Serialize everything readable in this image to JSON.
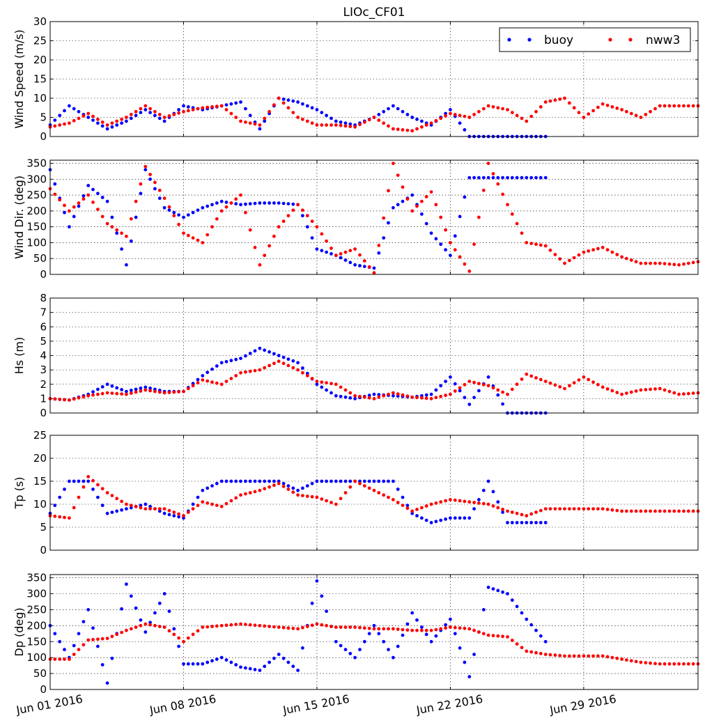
{
  "figure": {
    "title": "LIOc_CF01"
  },
  "colors": {
    "buoy": "#0000ff",
    "nww3": "#ff0000",
    "grid": "#000000"
  },
  "legend": {
    "placement": "top-right",
    "entries": [
      "buoy",
      "nww3"
    ]
  },
  "x_axis": {
    "type": "date",
    "range": [
      "2016-06-01",
      "2016-07-05"
    ],
    "tick_labels": [
      "Jun 01 2016",
      "Jun 08 2016",
      "Jun 15 2016",
      "Jun 22 2016",
      "Jun 29 2016"
    ],
    "tick_values": [
      "2016-06-01",
      "2016-06-08",
      "2016-06-15",
      "2016-06-22",
      "2016-06-29"
    ]
  },
  "chart_data": [
    {
      "type": "scatter",
      "ylabel": "Wind Speed (m/s)",
      "ylim": [
        0,
        30
      ],
      "yticks": [
        "0",
        "5",
        "10",
        "15",
        "20",
        "25",
        "30"
      ],
      "grid": true,
      "series": [
        {
          "name": "buoy",
          "x": [
            "2016-06-01",
            "2016-06-02",
            "2016-06-03",
            "2016-06-04",
            "2016-06-05",
            "2016-06-06",
            "2016-06-07",
            "2016-06-08",
            "2016-06-09",
            "2016-06-10",
            "2016-06-11",
            "2016-06-12",
            "2016-06-13",
            "2016-06-14",
            "2016-06-15",
            "2016-06-16",
            "2016-06-17",
            "2016-06-18",
            "2016-06-19",
            "2016-06-20",
            "2016-06-21",
            "2016-06-22",
            "2016-06-23",
            "2016-06-24",
            "2016-06-25",
            "2016-06-26",
            "2016-06-27"
          ],
          "values": [
            3,
            8,
            5,
            2,
            4,
            7,
            4,
            8,
            7,
            8,
            9,
            2,
            10,
            9,
            7,
            4,
            3,
            5,
            8,
            5,
            3,
            7,
            0,
            0,
            0,
            0,
            0
          ]
        },
        {
          "name": "nww3",
          "x": [
            "2016-06-01",
            "2016-06-02",
            "2016-06-03",
            "2016-06-04",
            "2016-06-05",
            "2016-06-06",
            "2016-06-07",
            "2016-06-08",
            "2016-06-09",
            "2016-06-10",
            "2016-06-11",
            "2016-06-12",
            "2016-06-13",
            "2016-06-14",
            "2016-06-15",
            "2016-06-16",
            "2016-06-17",
            "2016-06-18",
            "2016-06-19",
            "2016-06-20",
            "2016-06-21",
            "2016-06-22",
            "2016-06-23",
            "2016-06-24",
            "2016-06-25",
            "2016-06-26",
            "2016-06-27",
            "2016-06-28",
            "2016-06-29",
            "2016-06-30",
            "2016-07-01",
            "2016-07-02",
            "2016-07-03",
            "2016-07-04",
            "2016-07-05"
          ],
          "values": [
            2.5,
            3.5,
            6,
            3,
            5,
            8,
            5,
            6.5,
            7.5,
            8,
            4,
            3,
            10,
            5,
            3,
            3,
            2.5,
            5,
            2,
            1.5,
            3.5,
            6,
            5,
            8,
            7,
            4,
            9,
            10,
            5,
            8.5,
            7,
            5,
            8,
            8,
            8
          ]
        }
      ]
    },
    {
      "type": "scatter",
      "ylabel": "Wind Dir. (deg)",
      "ylim": [
        0,
        360
      ],
      "yticks": [
        "0",
        "50",
        "100",
        "150",
        "200",
        "250",
        "300",
        "350"
      ],
      "grid": true,
      "series": [
        {
          "name": "buoy",
          "x": [
            "2016-06-01",
            "2016-06-02",
            "2016-06-03",
            "2016-06-04",
            "2016-06-05",
            "2016-06-06",
            "2016-06-07",
            "2016-06-08",
            "2016-06-09",
            "2016-06-10",
            "2016-06-11",
            "2016-06-12",
            "2016-06-13",
            "2016-06-14",
            "2016-06-15",
            "2016-06-16",
            "2016-06-17",
            "2016-06-18",
            "2016-06-19",
            "2016-06-20",
            "2016-06-21",
            "2016-06-22",
            "2016-06-23",
            "2016-06-24",
            "2016-06-25",
            "2016-06-26",
            "2016-06-27"
          ],
          "values": [
            330,
            150,
            280,
            230,
            30,
            330,
            210,
            180,
            210,
            230,
            220,
            225,
            225,
            220,
            80,
            60,
            30,
            20,
            210,
            250,
            130,
            60,
            305,
            305,
            305,
            305,
            305
          ]
        },
        {
          "name": "nww3",
          "x": [
            "2016-06-01",
            "2016-06-02",
            "2016-06-03",
            "2016-06-04",
            "2016-06-05",
            "2016-06-06",
            "2016-06-07",
            "2016-06-08",
            "2016-06-09",
            "2016-06-10",
            "2016-06-11",
            "2016-06-12",
            "2016-06-13",
            "2016-06-14",
            "2016-06-15",
            "2016-06-16",
            "2016-06-17",
            "2016-06-18",
            "2016-06-19",
            "2016-06-20",
            "2016-06-21",
            "2016-06-22",
            "2016-06-23",
            "2016-06-24",
            "2016-06-25",
            "2016-06-26",
            "2016-06-27",
            "2016-06-28",
            "2016-06-29",
            "2016-06-30",
            "2016-07-01",
            "2016-07-02",
            "2016-07-03",
            "2016-07-04",
            "2016-07-05"
          ],
          "values": [
            270,
            200,
            250,
            160,
            120,
            340,
            240,
            130,
            100,
            200,
            250,
            30,
            150,
            220,
            150,
            60,
            80,
            5,
            350,
            200,
            260,
            100,
            10,
            350,
            220,
            100,
            90,
            35,
            70,
            85,
            55,
            35,
            35,
            30,
            40
          ]
        }
      ]
    },
    {
      "type": "scatter",
      "ylabel": "Hs (m)",
      "ylim": [
        0,
        8
      ],
      "yticks": [
        "0",
        "1",
        "2",
        "3",
        "4",
        "5",
        "6",
        "7",
        "8"
      ],
      "grid": true,
      "series": [
        {
          "name": "buoy",
          "x": [
            "2016-06-01",
            "2016-06-02",
            "2016-06-03",
            "2016-06-04",
            "2016-06-05",
            "2016-06-06",
            "2016-06-07",
            "2016-06-08",
            "2016-06-09",
            "2016-06-10",
            "2016-06-11",
            "2016-06-12",
            "2016-06-13",
            "2016-06-14",
            "2016-06-15",
            "2016-06-16",
            "2016-06-17",
            "2016-06-18",
            "2016-06-19",
            "2016-06-20",
            "2016-06-21",
            "2016-06-22",
            "2016-06-23",
            "2016-06-24",
            "2016-06-25",
            "2016-06-26",
            "2016-06-27"
          ],
          "values": [
            1,
            0.9,
            1.3,
            2,
            1.5,
            1.8,
            1.5,
            1.5,
            2.6,
            3.5,
            3.8,
            4.5,
            4,
            3.5,
            2,
            1.2,
            1,
            1.3,
            1.2,
            1.1,
            1.3,
            2.5,
            0.6,
            2.5,
            0,
            0,
            0
          ]
        },
        {
          "name": "nww3",
          "x": [
            "2016-06-01",
            "2016-06-02",
            "2016-06-03",
            "2016-06-04",
            "2016-06-05",
            "2016-06-06",
            "2016-06-07",
            "2016-06-08",
            "2016-06-09",
            "2016-06-10",
            "2016-06-11",
            "2016-06-12",
            "2016-06-13",
            "2016-06-14",
            "2016-06-15",
            "2016-06-16",
            "2016-06-17",
            "2016-06-18",
            "2016-06-19",
            "2016-06-20",
            "2016-06-21",
            "2016-06-22",
            "2016-06-23",
            "2016-06-24",
            "2016-06-25",
            "2016-06-26",
            "2016-06-27",
            "2016-06-28",
            "2016-06-29",
            "2016-06-30",
            "2016-07-01",
            "2016-07-02",
            "2016-07-03",
            "2016-07-04",
            "2016-07-05"
          ],
          "values": [
            1,
            0.9,
            1.2,
            1.4,
            1.3,
            1.6,
            1.4,
            1.5,
            2.3,
            2,
            2.8,
            3,
            3.6,
            3,
            2.2,
            2,
            1.2,
            1,
            1.4,
            1.1,
            1,
            1.3,
            2.2,
            1.9,
            1.3,
            2.7,
            2.2,
            1.7,
            2.5,
            1.8,
            1.3,
            1.6,
            1.7,
            1.3,
            1.4
          ]
        }
      ]
    },
    {
      "type": "scatter",
      "ylabel": "Tp (s)",
      "ylim": [
        0,
        25
      ],
      "yticks": [
        "0",
        "5",
        "10",
        "15",
        "20",
        "25"
      ],
      "grid": true,
      "series": [
        {
          "name": "buoy",
          "x": [
            "2016-06-01",
            "2016-06-02",
            "2016-06-03",
            "2016-06-04",
            "2016-06-05",
            "2016-06-06",
            "2016-06-07",
            "2016-06-08",
            "2016-06-09",
            "2016-06-10",
            "2016-06-11",
            "2016-06-12",
            "2016-06-13",
            "2016-06-14",
            "2016-06-15",
            "2016-06-16",
            "2016-06-17",
            "2016-06-18",
            "2016-06-19",
            "2016-06-20",
            "2016-06-21",
            "2016-06-22",
            "2016-06-23",
            "2016-06-24",
            "2016-06-25",
            "2016-06-26",
            "2016-06-27"
          ],
          "values": [
            8,
            15,
            15,
            8,
            9,
            10,
            8,
            7,
            13,
            15,
            15,
            15,
            15,
            13,
            15,
            15,
            15,
            15,
            15,
            8,
            6,
            7,
            7,
            15,
            6,
            6,
            6
          ]
        },
        {
          "name": "nww3",
          "x": [
            "2016-06-01",
            "2016-06-02",
            "2016-06-03",
            "2016-06-04",
            "2016-06-05",
            "2016-06-06",
            "2016-06-07",
            "2016-06-08",
            "2016-06-09",
            "2016-06-10",
            "2016-06-11",
            "2016-06-12",
            "2016-06-13",
            "2016-06-14",
            "2016-06-15",
            "2016-06-16",
            "2016-06-17",
            "2016-06-18",
            "2016-06-19",
            "2016-06-20",
            "2016-06-21",
            "2016-06-22",
            "2016-06-23",
            "2016-06-24",
            "2016-06-25",
            "2016-06-26",
            "2016-06-27",
            "2016-06-28",
            "2016-06-29",
            "2016-06-30",
            "2016-07-01",
            "2016-07-02",
            "2016-07-03",
            "2016-07-04",
            "2016-07-05"
          ],
          "values": [
            7.5,
            7,
            16,
            12.5,
            10,
            9,
            9,
            7.5,
            10.5,
            9.5,
            12,
            13,
            14.5,
            12,
            11.5,
            10,
            15,
            13,
            11,
            8.5,
            10,
            11,
            10.5,
            10,
            8.5,
            7.5,
            9,
            9,
            9,
            9,
            8.5,
            8.5,
            8.5,
            8.5,
            8.5
          ]
        }
      ]
    },
    {
      "type": "scatter",
      "ylabel": "Dp (deg)",
      "ylim": [
        0,
        360
      ],
      "yticks": [
        "0",
        "50",
        "100",
        "150",
        "200",
        "250",
        "300",
        "350"
      ],
      "grid": true,
      "series": [
        {
          "name": "buoy",
          "x": [
            "2016-06-01",
            "2016-06-02",
            "2016-06-03",
            "2016-06-04",
            "2016-06-05",
            "2016-06-06",
            "2016-06-07",
            "2016-06-08",
            "2016-06-09",
            "2016-06-10",
            "2016-06-11",
            "2016-06-12",
            "2016-06-13",
            "2016-06-14",
            "2016-06-15",
            "2016-06-16",
            "2016-06-17",
            "2016-06-18",
            "2016-06-19",
            "2016-06-20",
            "2016-06-21",
            "2016-06-22",
            "2016-06-23",
            "2016-06-24",
            "2016-06-25",
            "2016-06-26",
            "2016-06-27"
          ],
          "values": [
            200,
            100,
            250,
            20,
            330,
            180,
            300,
            80,
            80,
            100,
            70,
            60,
            110,
            60,
            340,
            150,
            100,
            200,
            100,
            240,
            150,
            220,
            40,
            320,
            300,
            220,
            150
          ]
        },
        {
          "name": "nww3",
          "x": [
            "2016-06-01",
            "2016-06-02",
            "2016-06-03",
            "2016-06-04",
            "2016-06-05",
            "2016-06-06",
            "2016-06-07",
            "2016-06-08",
            "2016-06-09",
            "2016-06-10",
            "2016-06-11",
            "2016-06-12",
            "2016-06-13",
            "2016-06-14",
            "2016-06-15",
            "2016-06-16",
            "2016-06-17",
            "2016-06-18",
            "2016-06-19",
            "2016-06-20",
            "2016-06-21",
            "2016-06-22",
            "2016-06-23",
            "2016-06-24",
            "2016-06-25",
            "2016-06-26",
            "2016-06-27",
            "2016-06-28",
            "2016-06-29",
            "2016-06-30",
            "2016-07-01",
            "2016-07-02",
            "2016-07-03",
            "2016-07-04",
            "2016-07-05"
          ],
          "values": [
            95,
            95,
            155,
            160,
            185,
            205,
            195,
            150,
            195,
            200,
            205,
            200,
            195,
            190,
            205,
            195,
            195,
            190,
            190,
            185,
            185,
            195,
            190,
            170,
            165,
            120,
            110,
            105,
            105,
            105,
            95,
            85,
            80,
            80,
            80
          ]
        }
      ]
    }
  ]
}
